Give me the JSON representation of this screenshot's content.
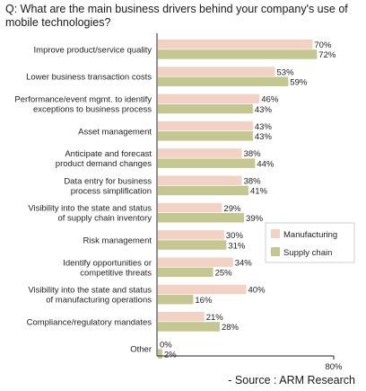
{
  "question": "Q: What are the main business drivers behind your company's use of mobile technologies?",
  "source": "- Source : ARM Research",
  "colors": {
    "manufacturing": "#f2d2c4",
    "supply_chain": "#c4c791",
    "axis": "#222222"
  },
  "chart_data": {
    "type": "bar",
    "orientation": "horizontal",
    "categories": [
      [
        "Improve product/service quality"
      ],
      [
        "Lower business transaction costs"
      ],
      [
        "Performance/event mgmt. to identify",
        "exceptions to business process"
      ],
      [
        "Asset management"
      ],
      [
        "Anticipate and forecast",
        "product demand changes"
      ],
      [
        "Data entry for business",
        "process simplification"
      ],
      [
        "Visibility into the state and status",
        "of supply chain inventory"
      ],
      [
        "Risk management"
      ],
      [
        "Identify opportunities or",
        "competitive threats"
      ],
      [
        "Visibility into the state and status",
        "of manufacturing operations"
      ],
      [
        "Compliance/regulatory mandates"
      ],
      [
        "Other"
      ]
    ],
    "series": [
      {
        "name": "Manufacturing",
        "values": [
          70,
          53,
          46,
          43,
          38,
          38,
          29,
          30,
          34,
          40,
          21,
          0
        ]
      },
      {
        "name": "Supply chain",
        "values": [
          72,
          59,
          43,
          43,
          44,
          41,
          39,
          31,
          25,
          16,
          28,
          2
        ]
      }
    ],
    "value_suffix": "%",
    "xlim": [
      0,
      80
    ],
    "x_tick_label": "80%",
    "grid": false,
    "legend_position": "right"
  }
}
